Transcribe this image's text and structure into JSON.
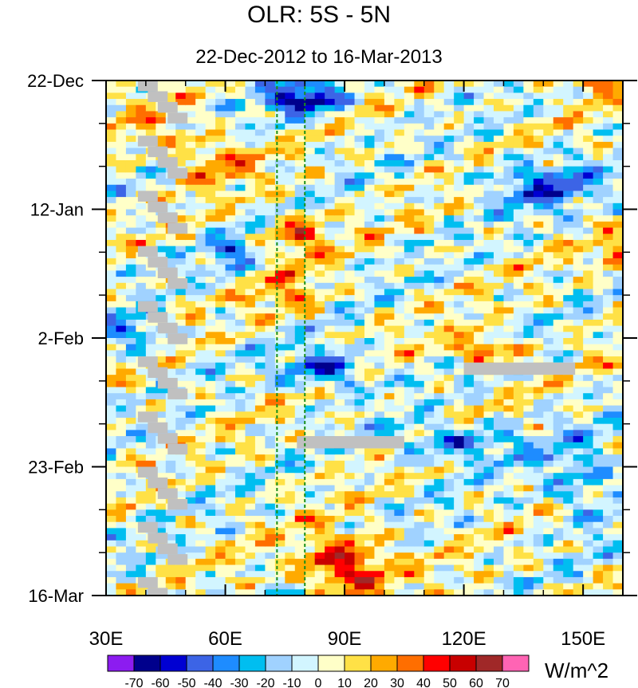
{
  "chart_data": {
    "type": "heatmap",
    "title": "OLR: 5S - 5N",
    "subtitle": "22-Dec-2012 to 16-Mar-2013",
    "xlabel": "",
    "ylabel": "",
    "x_range": [
      30,
      160
    ],
    "y_range_days": [
      0,
      84
    ],
    "x_ticks": [
      {
        "value": 30,
        "label": "30E"
      },
      {
        "value": 60,
        "label": "60E"
      },
      {
        "value": 90,
        "label": "90E"
      },
      {
        "value": 120,
        "label": "120E"
      },
      {
        "value": 150,
        "label": "150E"
      }
    ],
    "y_ticks": [
      {
        "day": 0,
        "label": "22-Dec"
      },
      {
        "day": 21,
        "label": "12-Jan"
      },
      {
        "day": 42,
        "label": "2-Feb"
      },
      {
        "day": 63,
        "label": "23-Feb"
      },
      {
        "day": 84,
        "label": "16-Mar"
      }
    ],
    "reference_lines": [
      73,
      80
    ],
    "colorbar": {
      "units": "W/m^2",
      "labels": [
        "-70",
        "-60",
        "-50",
        "-40",
        "-30",
        "-20",
        "-10",
        "0",
        "10",
        "20",
        "30",
        "40",
        "50",
        "60",
        "70"
      ],
      "colors": [
        "#8c1cf0",
        "#00008c",
        "#0000d2",
        "#3c64e6",
        "#1e8cff",
        "#00bef0",
        "#a0d2ff",
        "#d2f5ff",
        "#ffffc8",
        "#ffe146",
        "#ffaa00",
        "#ff6e00",
        "#ff0000",
        "#c80000",
        "#a02828",
        "#ff64b4"
      ]
    },
    "missing_data_color": "#c0c0c0"
  }
}
